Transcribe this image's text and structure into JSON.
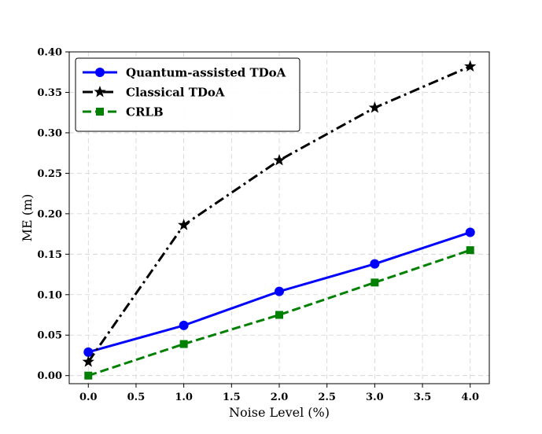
{
  "chart_data": {
    "type": "line",
    "title": "",
    "xlabel": "Noise Level (%)",
    "ylabel": "ME (m)",
    "xlim": [
      -0.2,
      4.2
    ],
    "ylim": [
      -0.01,
      0.4
    ],
    "xticks": [
      0.0,
      0.5,
      1.0,
      1.5,
      2.0,
      2.5,
      3.0,
      3.5,
      4.0
    ],
    "xtick_labels": [
      "0.0",
      "0.5",
      "1.0",
      "1.5",
      "2.0",
      "2.5",
      "3.0",
      "3.5",
      "4.0"
    ],
    "yticks": [
      0.0,
      0.05,
      0.1,
      0.15,
      0.2,
      0.25,
      0.3,
      0.35,
      0.4
    ],
    "ytick_labels": [
      "0.00",
      "0.05",
      "0.10",
      "0.15",
      "0.20",
      "0.25",
      "0.30",
      "0.35",
      "0.40"
    ],
    "grid": true,
    "legend_position": "top-left",
    "series": [
      {
        "name": "Quantum-assisted TDoA",
        "x": [
          0,
          1,
          2,
          3,
          4
        ],
        "values": [
          0.029,
          0.062,
          0.104,
          0.138,
          0.177
        ],
        "color": "#0000ff",
        "line_style": "solid",
        "marker": "circle"
      },
      {
        "name": "Classical TDoA",
        "x": [
          0,
          1,
          2,
          3,
          4
        ],
        "values": [
          0.017,
          0.186,
          0.266,
          0.331,
          0.382
        ],
        "color": "#000000",
        "line_style": "dash-dot",
        "marker": "star"
      },
      {
        "name": "CRLB",
        "x": [
          0,
          1,
          2,
          3,
          4
        ],
        "values": [
          0.0,
          0.039,
          0.075,
          0.115,
          0.155
        ],
        "color": "#008000",
        "line_style": "dashed",
        "marker": "square"
      }
    ]
  }
}
